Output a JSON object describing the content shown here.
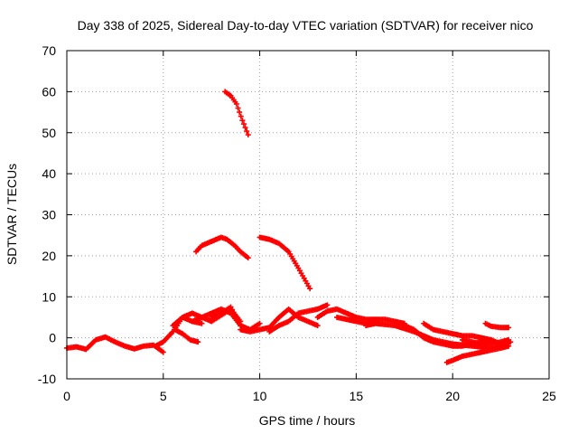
{
  "chart_data": {
    "type": "scatter",
    "title": "Day 338 of 2025, Sidereal Day-to-day VTEC variation (SDTVAR) for receiver nico",
    "xlabel": "GPS time / hours",
    "ylabel": "SDTVAR / TECUs",
    "xlim": [
      0,
      25
    ],
    "ylim": [
      -10,
      70
    ],
    "xticks": [
      0,
      5,
      10,
      15,
      20,
      25
    ],
    "yticks": [
      -10,
      0,
      10,
      20,
      30,
      40,
      50,
      60,
      70
    ],
    "grid": true,
    "marker_color": "#ff0000",
    "series": [
      {
        "name": "s1",
        "x": [
          0.0,
          0.5,
          1.0,
          1.5,
          2.0,
          2.5,
          3.0,
          3.5,
          4.0,
          4.5,
          5.0
        ],
        "y": [
          -2.5,
          -2.2,
          -2.8,
          -0.5,
          0.2,
          -1.0,
          -2.0,
          -2.7,
          -2.0,
          -1.8,
          -3.5
        ]
      },
      {
        "name": "s2",
        "x": [
          4.6,
          5.0,
          5.5,
          6.0,
          6.5,
          7.0
        ],
        "y": [
          -2.0,
          -1.0,
          1.5,
          5.0,
          4.0,
          3.5
        ]
      },
      {
        "name": "s3",
        "x": [
          5.5,
          6.0,
          6.5,
          7.0,
          7.5,
          8.0,
          8.5,
          9.0
        ],
        "y": [
          3.0,
          5.0,
          6.0,
          5.0,
          4.0,
          5.5,
          7.0,
          4.0
        ]
      },
      {
        "name": "s4",
        "x": [
          5.6,
          6.0,
          6.4,
          6.8
        ],
        "y": [
          2.0,
          1.0,
          -0.5,
          -1.0
        ]
      },
      {
        "name": "s5",
        "x": [
          6.5,
          7.0,
          7.5,
          8.0,
          8.5,
          9.0,
          9.5,
          10.0
        ],
        "y": [
          4.0,
          5.0,
          6.0,
          7.0,
          6.0,
          3.0,
          2.0,
          3.5
        ]
      },
      {
        "name": "s6",
        "x": [
          7.5,
          8.0,
          8.5,
          9.0
        ],
        "y": [
          5.0,
          6.0,
          7.5,
          3.0
        ]
      },
      {
        "name": "s7",
        "x": [
          8.2,
          8.5,
          8.8,
          9.1,
          9.4
        ],
        "y": [
          60.0,
          59.0,
          57.0,
          53.0,
          49.5
        ]
      },
      {
        "name": "s8",
        "x": [
          6.7,
          7.0,
          7.5,
          8.0,
          8.3,
          8.7,
          9.0,
          9.4
        ],
        "y": [
          21.0,
          22.5,
          23.5,
          24.5,
          24.0,
          22.5,
          21.0,
          19.5
        ]
      },
      {
        "name": "s9",
        "x": [
          10.0,
          10.5,
          11.0,
          11.5,
          12.0,
          12.3,
          12.6
        ],
        "y": [
          24.5,
          24.0,
          23.0,
          21.0,
          17.0,
          14.5,
          12.0
        ]
      },
      {
        "name": "s10",
        "x": [
          9.0,
          9.5,
          10.0,
          10.5,
          11.0,
          11.5,
          12.0,
          12.5,
          13.0
        ],
        "y": [
          2.0,
          1.5,
          2.0,
          2.5,
          5.0,
          7.0,
          5.0,
          4.0,
          3.0
        ]
      },
      {
        "name": "s11",
        "x": [
          10.5,
          11.0,
          11.5,
          12.0,
          12.5,
          13.0,
          13.5
        ],
        "y": [
          1.5,
          3.0,
          4.0,
          6.0,
          6.5,
          7.0,
          8.0
        ]
      },
      {
        "name": "s12",
        "x": [
          13.0,
          13.5,
          14.0,
          14.5,
          15.0,
          15.5,
          16.0,
          16.5,
          17.0,
          17.5
        ],
        "y": [
          5.0,
          6.5,
          7.0,
          6.0,
          5.0,
          4.5,
          4.5,
          4.5,
          4.0,
          3.5
        ]
      },
      {
        "name": "s13",
        "x": [
          14.0,
          14.5,
          15.0,
          15.5,
          16.0
        ],
        "y": [
          5.0,
          4.5,
          4.0,
          3.5,
          4.0
        ]
      },
      {
        "name": "s14",
        "x": [
          15.5,
          16.0,
          17.0,
          18.0,
          18.5,
          19.0,
          19.5,
          20.0,
          21.0,
          22.0,
          22.5,
          23.0
        ],
        "y": [
          3.0,
          3.5,
          3.0,
          1.5,
          0.5,
          -0.5,
          -1.0,
          -1.5,
          -2.0,
          -2.5,
          -2.0,
          -1.0
        ]
      },
      {
        "name": "s15",
        "x": [
          17.0,
          17.5,
          18.0,
          18.5,
          19.0,
          19.5,
          20.0,
          20.5,
          21.0,
          21.5,
          22.0
        ],
        "y": [
          4.0,
          3.0,
          2.0,
          0.0,
          -1.0,
          -1.5,
          -2.0,
          -2.0,
          -1.5,
          -1.0,
          -0.5
        ]
      },
      {
        "name": "s16",
        "x": [
          18.5,
          19.0,
          19.5,
          20.0,
          20.5,
          21.0,
          21.5,
          22.0,
          22.5
        ],
        "y": [
          3.5,
          2.0,
          1.5,
          1.0,
          0.5,
          0.5,
          0.0,
          -0.5,
          -1.5
        ]
      },
      {
        "name": "s17",
        "x": [
          19.7,
          20.0,
          20.5,
          21.0,
          21.5,
          22.0,
          22.5,
          22.9
        ],
        "y": [
          -6.0,
          -5.5,
          -4.5,
          -4.0,
          -3.5,
          -3.0,
          -2.5,
          -2.0
        ]
      },
      {
        "name": "s18",
        "x": [
          21.7,
          22.0,
          22.5,
          22.9
        ],
        "y": [
          3.5,
          2.8,
          2.5,
          2.5
        ]
      },
      {
        "name": "s19",
        "x": [
          20.5,
          21.0,
          21.5,
          22.0,
          22.5,
          22.9
        ],
        "y": [
          -0.5,
          -1.0,
          -1.5,
          -1.5,
          -1.0,
          -0.5
        ]
      }
    ]
  }
}
